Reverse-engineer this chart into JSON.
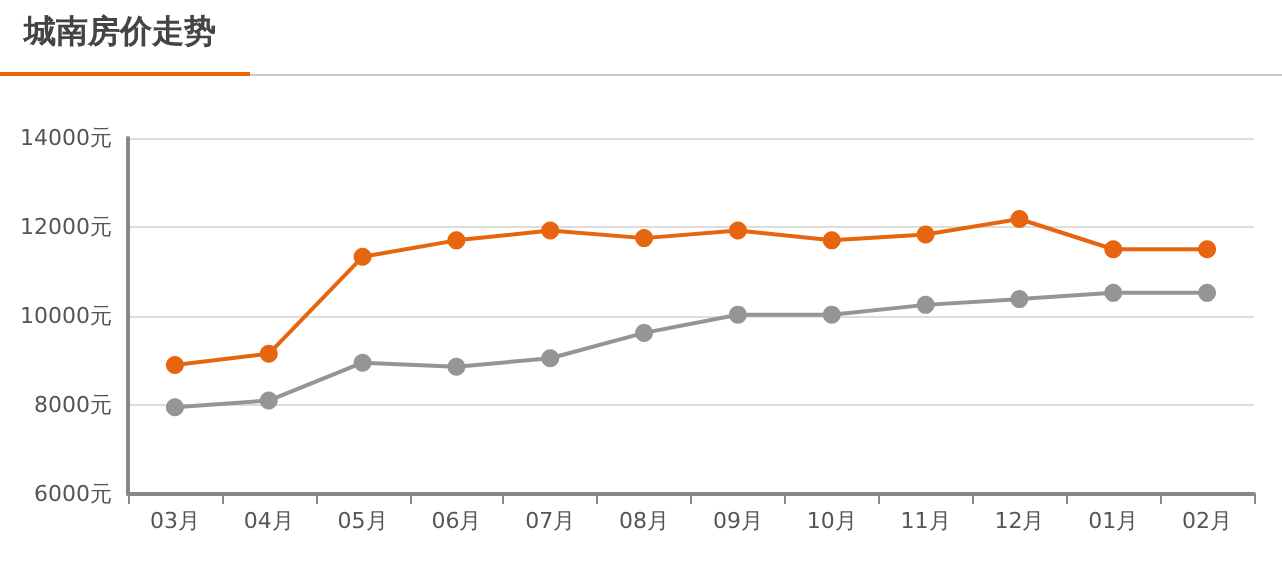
{
  "chart_data": {
    "type": "line",
    "title": "城南房价走势",
    "categories": [
      "03月",
      "04月",
      "05月",
      "06月",
      "07月",
      "08月",
      "09月",
      "10月",
      "11月",
      "12月",
      "01月",
      "02月"
    ],
    "series": [
      {
        "color": "#e8650f",
        "values": [
          8900,
          9150,
          11330,
          11700,
          11920,
          11750,
          11920,
          11700,
          11830,
          12180,
          11500,
          11500
        ]
      },
      {
        "color": "#959595",
        "values": [
          7950,
          8100,
          8950,
          8860,
          9050,
          9620,
          10030,
          10030,
          10250,
          10380,
          10520,
          10520
        ]
      }
    ],
    "ylim": [
      6000,
      14000
    ],
    "yticks": [
      {
        "value": 6000,
        "label": "6000元"
      },
      {
        "value": 8000,
        "label": "8000元"
      },
      {
        "value": 10000,
        "label": "10000元"
      },
      {
        "value": 12000,
        "label": "12000元"
      },
      {
        "value": 14000,
        "label": "14000元"
      }
    ],
    "grid": "y",
    "marker": "circle",
    "line_style": "solid"
  }
}
